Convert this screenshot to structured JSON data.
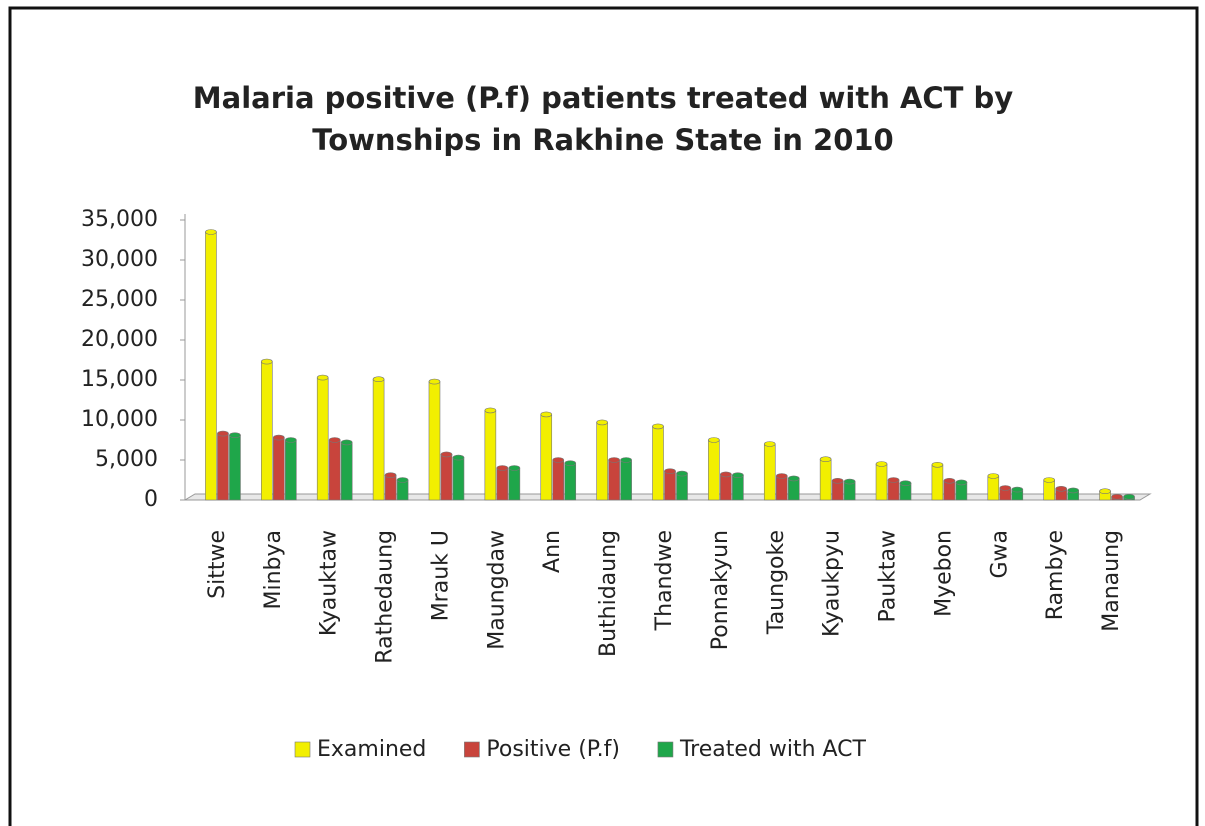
{
  "chart_data": {
    "type": "bar",
    "title": "Malaria positive (P.f) patients treated with ACT by Townships in Rakhine State in 2010",
    "categories": [
      "Sittwe",
      "Minbya",
      "Kyauktaw",
      "Rathedaung",
      "Mrauk U",
      "Maungdaw",
      "Ann",
      "Buthidaung",
      "Thandwe",
      "Ponnakyun",
      "Taungoke",
      "Kyaukpyu",
      "Pauktaw",
      "Myebon",
      "Gwa",
      "Rambye",
      "Manaung"
    ],
    "series": [
      {
        "name": "Examined",
        "color": "#f2ef00",
        "values": [
          33500,
          17300,
          15300,
          15100,
          14800,
          11200,
          10700,
          9700,
          9200,
          7500,
          7000,
          5100,
          4500,
          4400,
          3000,
          2500,
          1100
        ]
      },
      {
        "name": "Positive (P.f)",
        "color": "#c8443c",
        "values": [
          8300,
          7800,
          7500,
          3100,
          5700,
          4000,
          5000,
          5000,
          3600,
          3200,
          3000,
          2400,
          2500,
          2400,
          1500,
          1400,
          400
        ]
      },
      {
        "name": "Treated with ACT",
        "color": "#1fa64a",
        "values": [
          8100,
          7500,
          7200,
          2500,
          5300,
          4000,
          4600,
          5000,
          3300,
          3100,
          2700,
          2300,
          2100,
          2200,
          1300,
          1200,
          400
        ]
      }
    ],
    "ylim": [
      0,
      35000
    ],
    "yticks": [
      0,
      {
        "value": 5000,
        "label": "5,000"
      },
      {
        "value": 10000,
        "label": "10,000"
      },
      {
        "value": 15000,
        "label": "15,000"
      },
      {
        "value": 20000,
        "label": "20,000"
      },
      {
        "value": 25000,
        "label": "25,000"
      },
      {
        "value": 30000,
        "label": "30,000"
      },
      {
        "value": 35000,
        "label": "35,000"
      }
    ],
    "grid": false,
    "legend": "bottom"
  }
}
